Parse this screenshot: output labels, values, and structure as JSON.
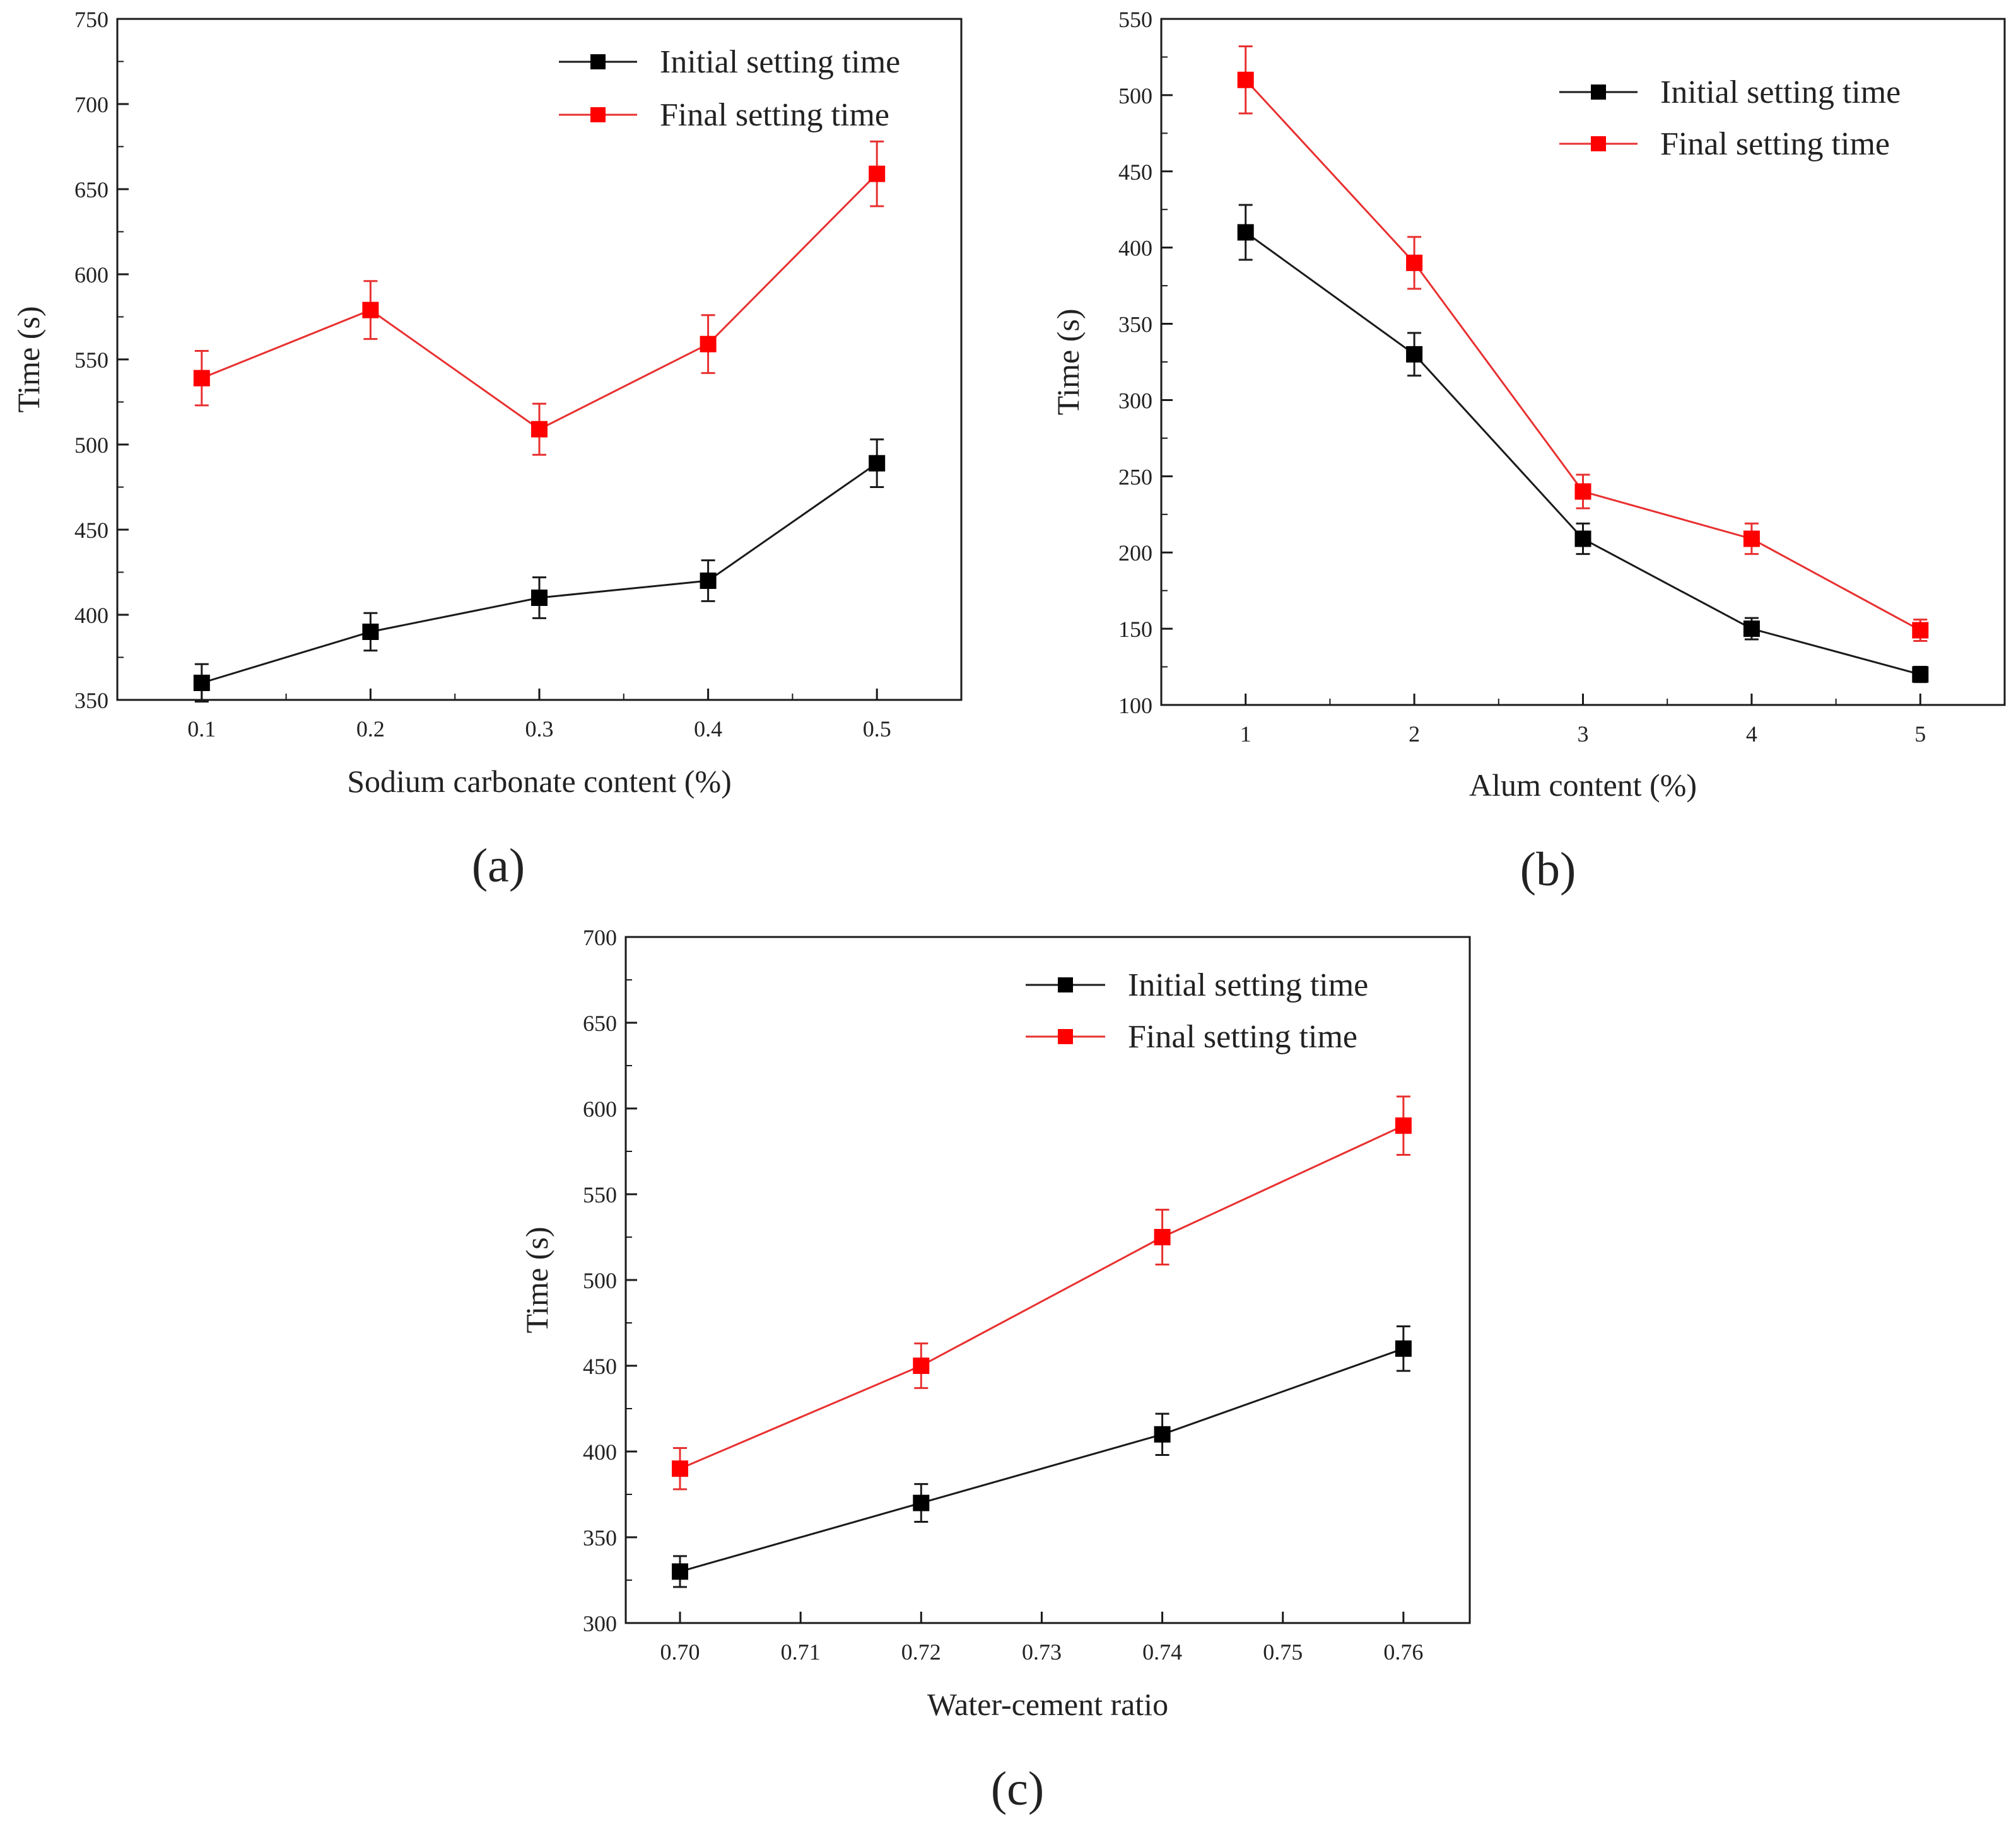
{
  "colors": {
    "initial": "#000000",
    "final": "#ff0000",
    "initial_line": "#1a1a1a",
    "final_line": "#e83030",
    "axis": "#1a1a1a"
  },
  "chart_data": [
    {
      "type": "line",
      "caption": "(a)",
      "title": "",
      "xlabel": "Sodium carbonate content (%)",
      "ylabel": "Time (s)",
      "x": [
        0.1,
        0.2,
        0.3,
        0.4,
        0.5
      ],
      "x_tick_labels": [
        "0.1",
        "0.2",
        "0.3",
        "0.4",
        "0.5"
      ],
      "xlim": [
        0.05,
        0.55
      ],
      "ylim": [
        350,
        750
      ],
      "y_ticks": [
        350,
        400,
        450,
        500,
        550,
        600,
        650,
        700,
        750
      ],
      "legend_position": "top-right",
      "grid": false,
      "series": [
        {
          "name": "Initial setting time",
          "values": [
            360,
            390,
            410,
            420,
            489
          ],
          "errors": [
            11,
            11,
            12,
            12,
            14
          ]
        },
        {
          "name": "Final setting time",
          "values": [
            539,
            579,
            509,
            559,
            659
          ],
          "errors": [
            16,
            17,
            15,
            17,
            19
          ]
        }
      ]
    },
    {
      "type": "line",
      "caption": "(b)",
      "title": "",
      "xlabel": "Alum content (%)",
      "ylabel": "Time (s)",
      "x": [
        1,
        2,
        3,
        4,
        5
      ],
      "x_tick_labels": [
        "1",
        "2",
        "3",
        "4",
        "5"
      ],
      "xlim": [
        0.5,
        5.5
      ],
      "ylim": [
        100,
        550
      ],
      "y_ticks": [
        100,
        150,
        200,
        250,
        300,
        350,
        400,
        450,
        500,
        550
      ],
      "legend_position": "top-right",
      "grid": false,
      "series": [
        {
          "name": "Initial setting time",
          "values": [
            410,
            330,
            209,
            150,
            120
          ],
          "errors": [
            18,
            14,
            10,
            7,
            5
          ]
        },
        {
          "name": "Final setting time",
          "values": [
            510,
            390,
            240,
            209,
            149
          ],
          "errors": [
            22,
            17,
            11,
            10,
            7
          ]
        }
      ]
    },
    {
      "type": "line",
      "caption": "(c)",
      "title": "",
      "xlabel": "Water-cement ratio",
      "ylabel": "Time (s)",
      "x": [
        0.7,
        0.72,
        0.74,
        0.76
      ],
      "x_ticks": [
        0.7,
        0.71,
        0.72,
        0.73,
        0.74,
        0.75,
        0.76
      ],
      "x_tick_labels": [
        "0.70",
        "0.71",
        "0.72",
        "0.73",
        "0.74",
        "0.75",
        "0.76"
      ],
      "xlim": [
        0.6955,
        0.7655
      ],
      "ylim": [
        300,
        700
      ],
      "y_ticks": [
        300,
        350,
        400,
        450,
        500,
        550,
        600,
        650,
        700
      ],
      "legend_position": "top-right",
      "grid": false,
      "series": [
        {
          "name": "Initial setting time",
          "values": [
            330,
            370,
            410,
            460
          ],
          "errors": [
            9,
            11,
            12,
            13
          ]
        },
        {
          "name": "Final setting time",
          "values": [
            390,
            450,
            525,
            590
          ],
          "errors": [
            12,
            13,
            16,
            17
          ]
        }
      ]
    }
  ]
}
